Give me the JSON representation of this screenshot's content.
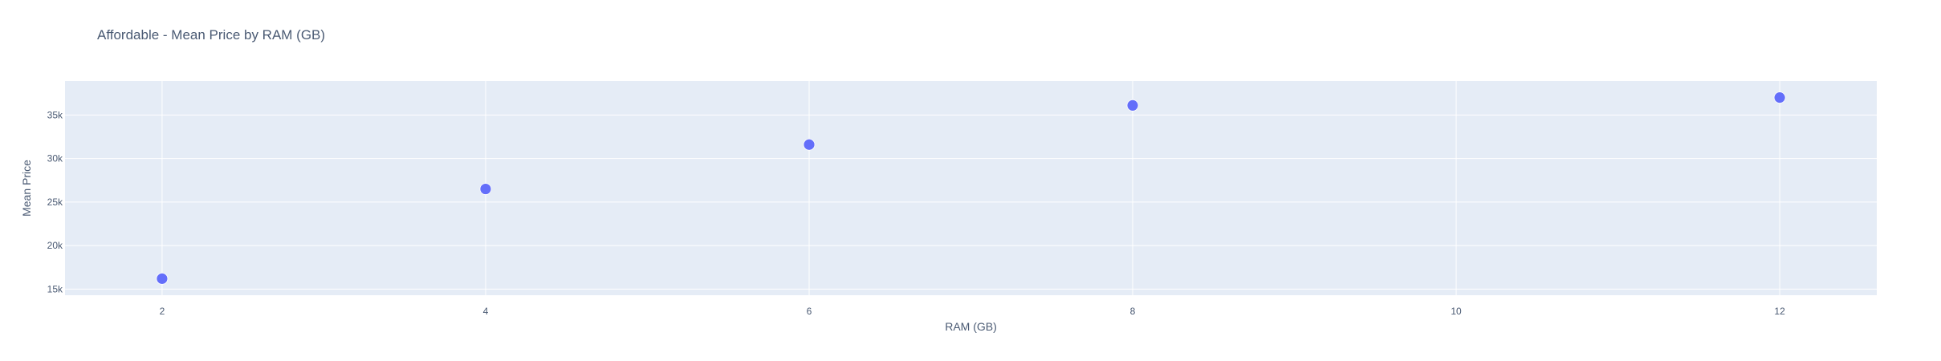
{
  "chart_data": {
    "type": "scatter",
    "title": "Affordable - Mean Price by RAM (GB)",
    "xlabel": "RAM (GB)",
    "ylabel": "Mean Price",
    "x": [
      2,
      4,
      6,
      8,
      12
    ],
    "y": [
      16200,
      26500,
      31600,
      36100,
      37000
    ],
    "xlim": [
      1.4,
      12.6
    ],
    "ylim": [
      14300,
      38900
    ],
    "x_ticks": [
      2,
      4,
      6,
      8,
      10,
      12
    ],
    "x_tick_labels": [
      "2",
      "4",
      "6",
      "8",
      "10",
      "12"
    ],
    "y_ticks": [
      15000,
      20000,
      25000,
      30000,
      35000
    ],
    "y_tick_labels": [
      "15k",
      "20k",
      "25k",
      "30k",
      "35k"
    ],
    "grid": true,
    "legend": false,
    "colors": {
      "marker": "#636efa",
      "plot_bg": "#e5ecf6",
      "grid": "#ffffff",
      "text": "#4a5a73"
    }
  }
}
